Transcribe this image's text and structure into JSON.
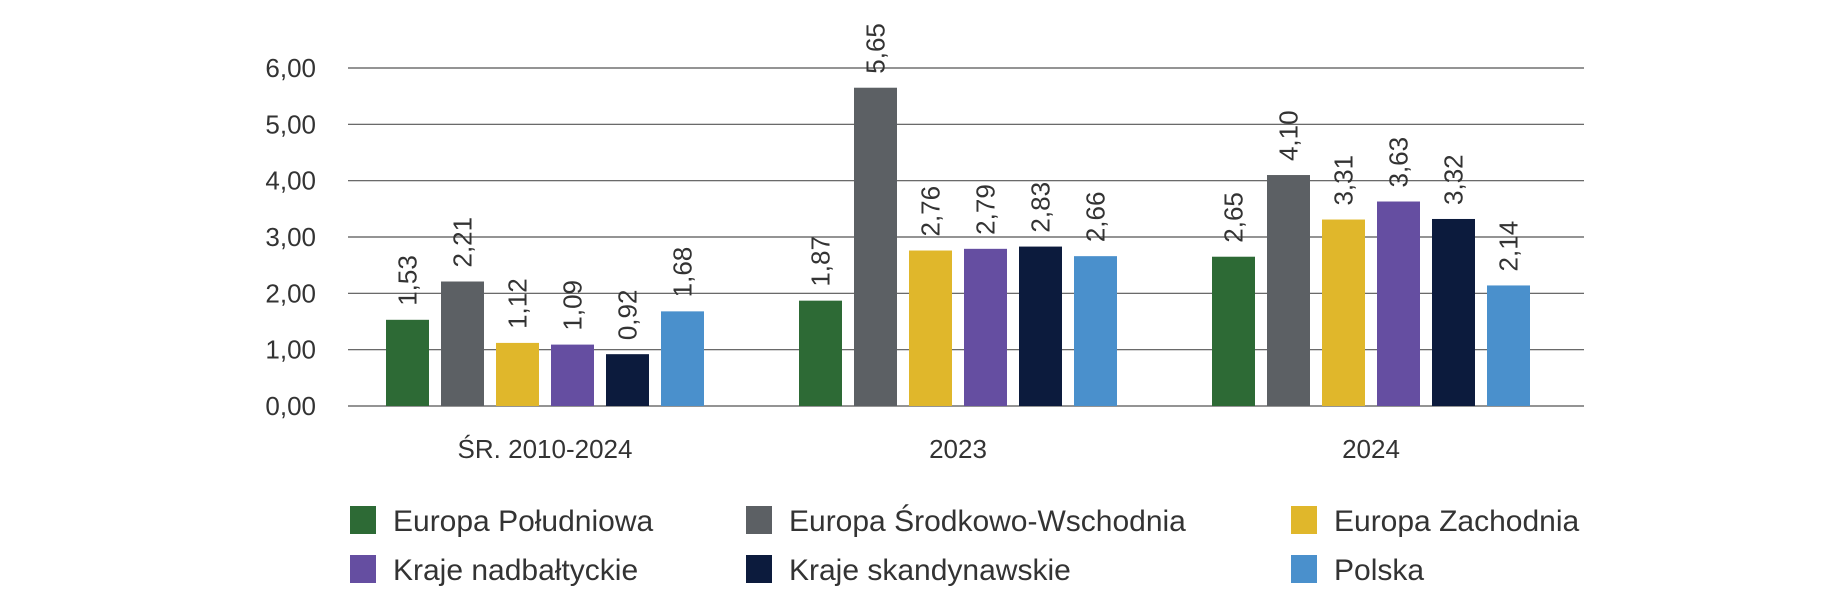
{
  "chart_data": {
    "type": "bar",
    "title": "",
    "xlabel": "",
    "ylabel": "",
    "categories": [
      "ŚR. 2010-2024",
      "2023",
      "2024"
    ],
    "ylim": [
      0,
      6
    ],
    "yticks": [
      "0,00",
      "1,00",
      "2,00",
      "3,00",
      "4,00",
      "5,00",
      "6,00"
    ],
    "grid": true,
    "legend_position": "bottom",
    "series": [
      {
        "name": "Europa Południowa",
        "color": "#2d6a35",
        "values": [
          1.53,
          1.87,
          2.65
        ],
        "labels": [
          "1,53",
          "1,87",
          "2,65"
        ]
      },
      {
        "name": "Europa Środkowo-Wschodnia",
        "color": "#5c6064",
        "values": [
          2.21,
          5.65,
          4.1
        ],
        "labels": [
          "2,21",
          "5,65",
          "4,10"
        ]
      },
      {
        "name": "Europa Zachodnia",
        "color": "#e0b72b",
        "values": [
          1.12,
          2.76,
          3.31
        ],
        "labels": [
          "1,12",
          "2,76",
          "3,31"
        ]
      },
      {
        "name": "Kraje nadbałtyckie",
        "color": "#654ea1",
        "values": [
          1.09,
          2.79,
          3.63
        ],
        "labels": [
          "1,09",
          "2,79",
          "3,63"
        ]
      },
      {
        "name": "Kraje skandynawskie",
        "color": "#0c1b3d",
        "values": [
          0.92,
          2.83,
          3.32
        ],
        "labels": [
          "0,92",
          "2,83",
          "3,32"
        ]
      },
      {
        "name": "Polska",
        "color": "#4a90cc",
        "values": [
          1.68,
          2.66,
          2.14
        ],
        "labels": [
          "1,68",
          "2,66",
          "2,14"
        ]
      }
    ]
  }
}
